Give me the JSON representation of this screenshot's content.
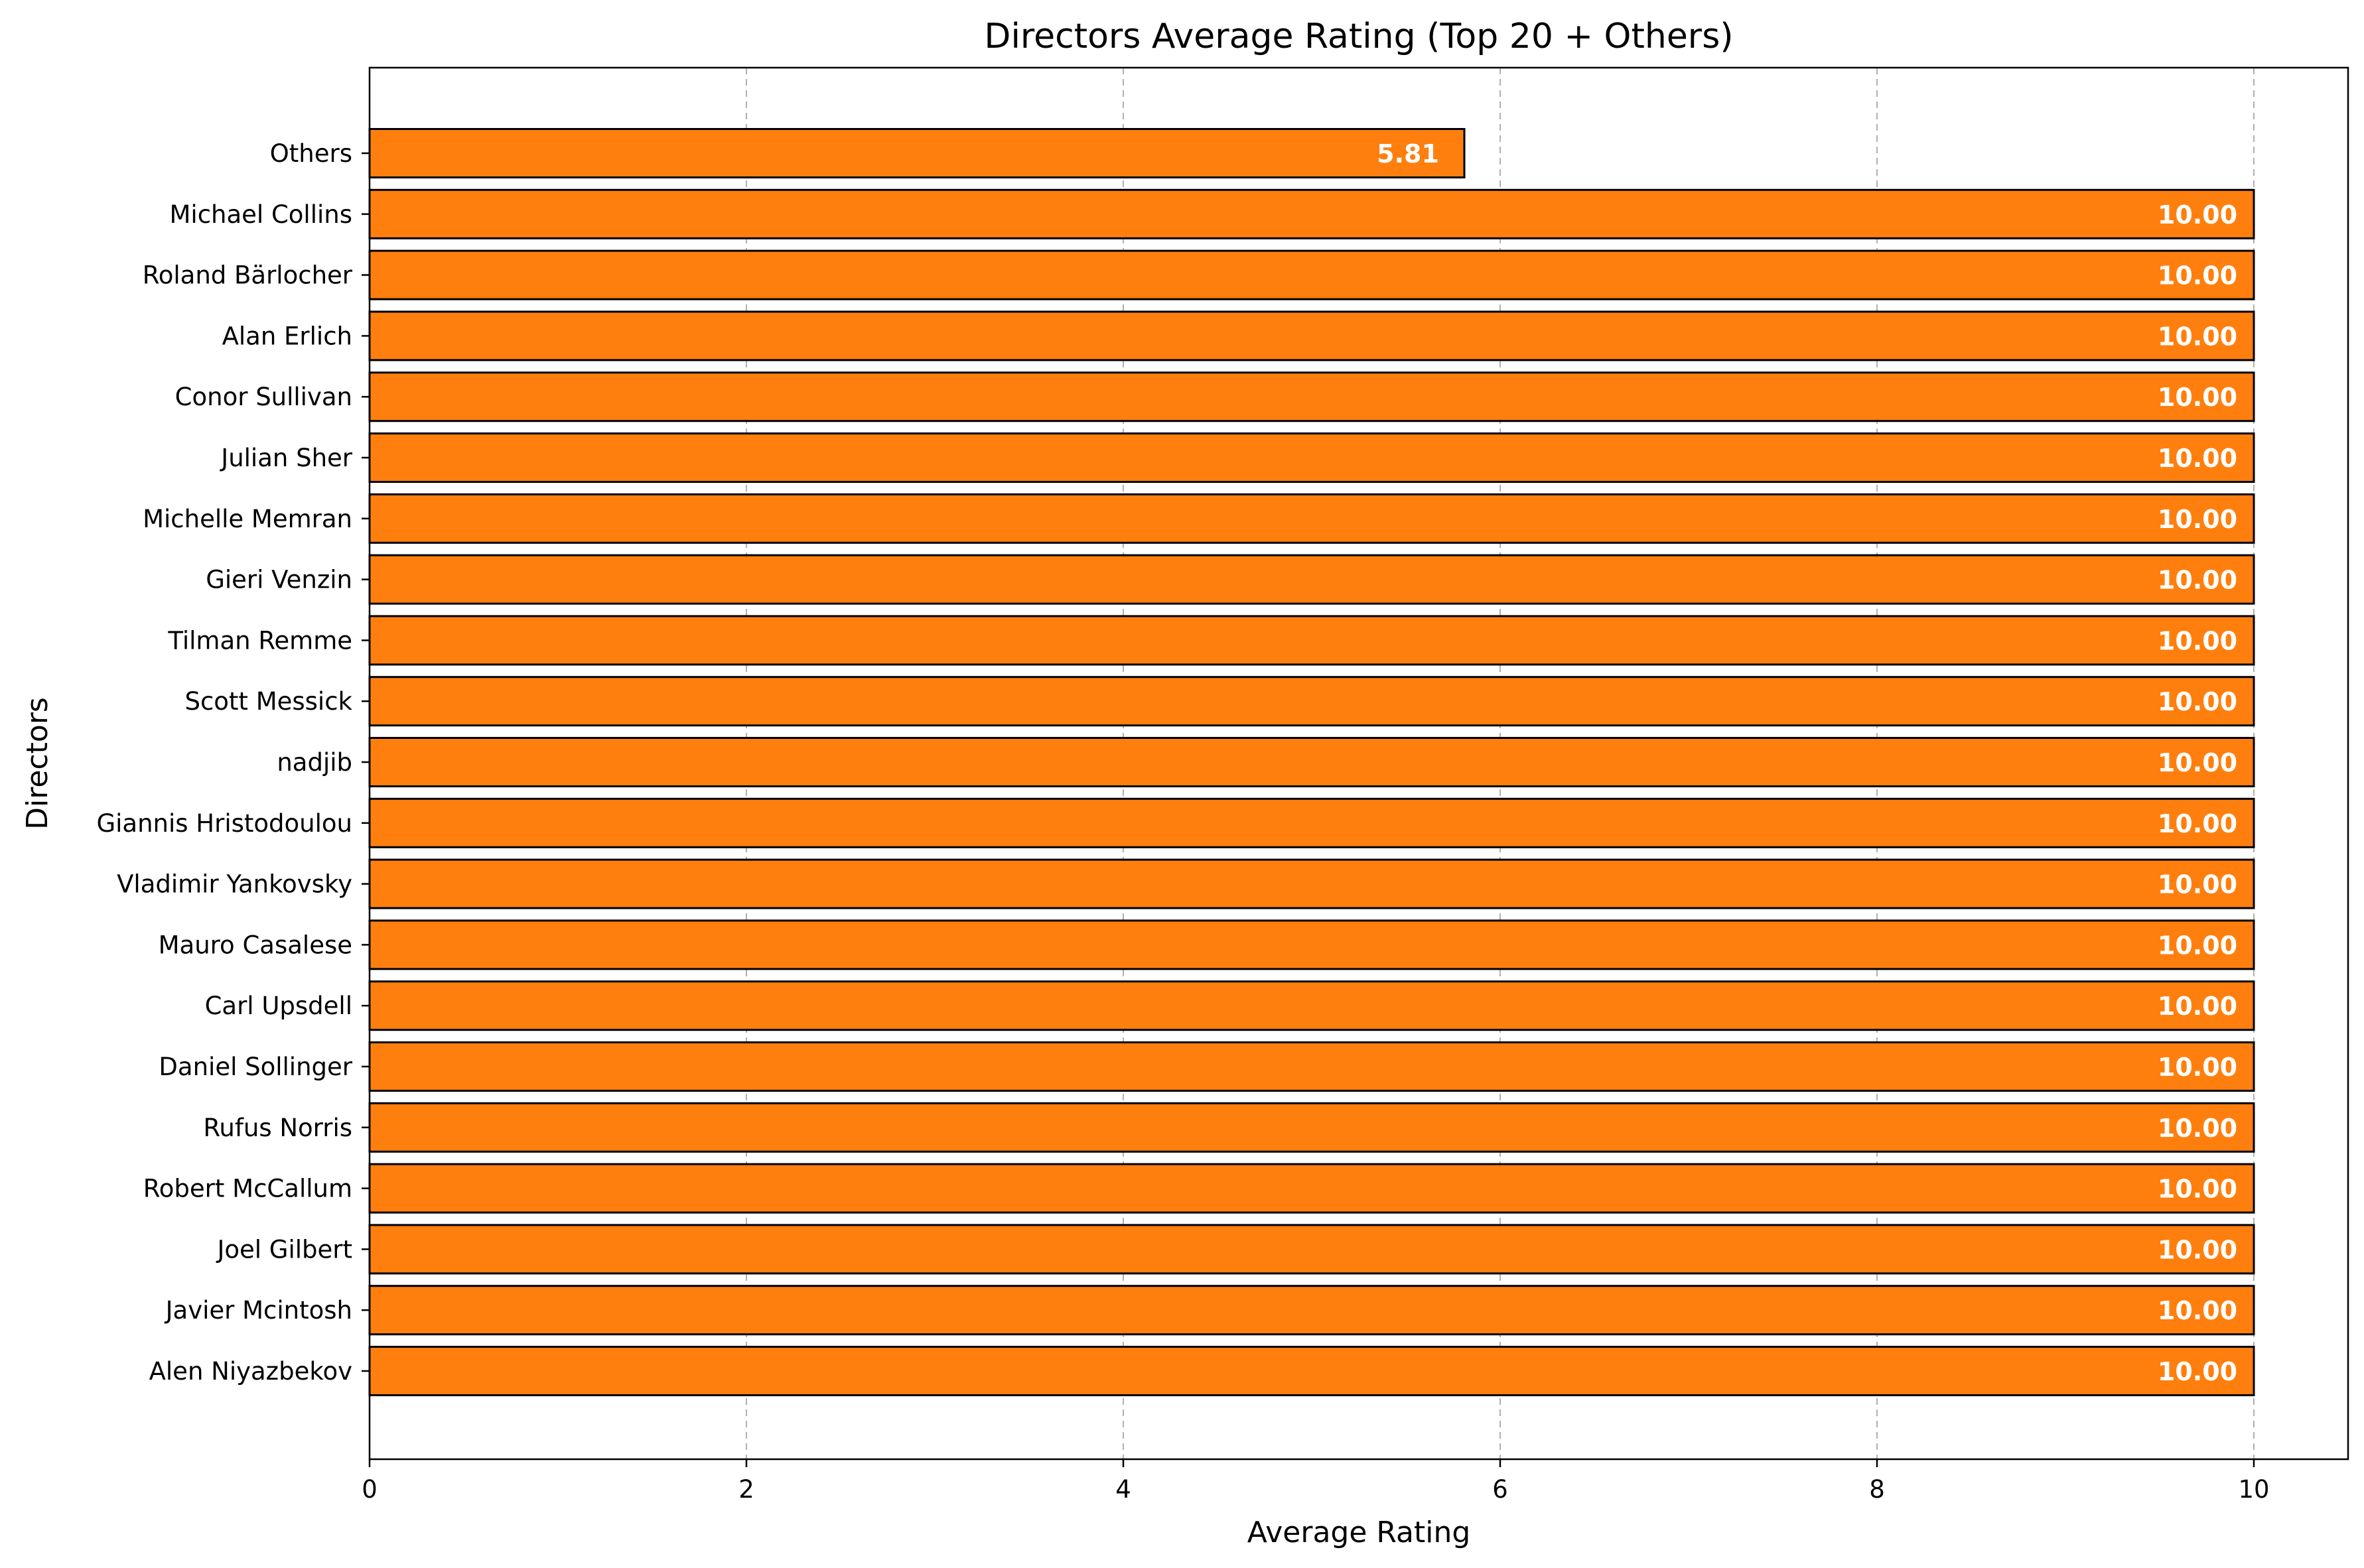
{
  "chart_data": {
    "type": "bar",
    "orientation": "horizontal",
    "title": "Directors Average Rating (Top 20 + Others)",
    "xlabel": "Average Rating",
    "ylabel": "Directors",
    "categories": [
      "Alen Niyazbekov",
      "Javier Mcintosh",
      "Joel Gilbert",
      "Robert McCallum",
      "Rufus Norris",
      "Daniel Sollinger",
      "Carl Upsdell",
      "Mauro Casalese",
      "Vladimir Yankovsky",
      "Giannis Hristodoulou",
      "nadjib",
      "Scott Messick",
      "Tilman Remme",
      "Gieri Venzin",
      "Michelle Memran",
      "Julian Sher",
      "Conor Sullivan",
      "Alan Erlich",
      "Roland Bärlocher",
      "Michael Collins",
      "Others"
    ],
    "values": [
      10,
      10,
      10,
      10,
      10,
      10,
      10,
      10,
      10,
      10,
      10,
      10,
      10,
      10,
      10,
      10,
      10,
      10,
      10,
      10,
      5.81
    ],
    "value_labels": [
      "10.00",
      "10.00",
      "10.00",
      "10.00",
      "10.00",
      "10.00",
      "10.00",
      "10.00",
      "10.00",
      "10.00",
      "10.00",
      "10.00",
      "10.00",
      "10.00",
      "10.00",
      "10.00",
      "10.00",
      "10.00",
      "10.00",
      "10.00",
      "5.81"
    ],
    "xlim": [
      0,
      10.5
    ],
    "xticks": [
      0,
      2,
      4,
      6,
      8,
      10
    ],
    "xtick_labels": [
      "0",
      "2",
      "4",
      "6",
      "8",
      "10"
    ],
    "grid": "x-axis, dashed",
    "legend": "none",
    "bar_color": "#ff7f0e",
    "bar_edge_color": "#000000",
    "grid_color": "#b0b0b0"
  }
}
